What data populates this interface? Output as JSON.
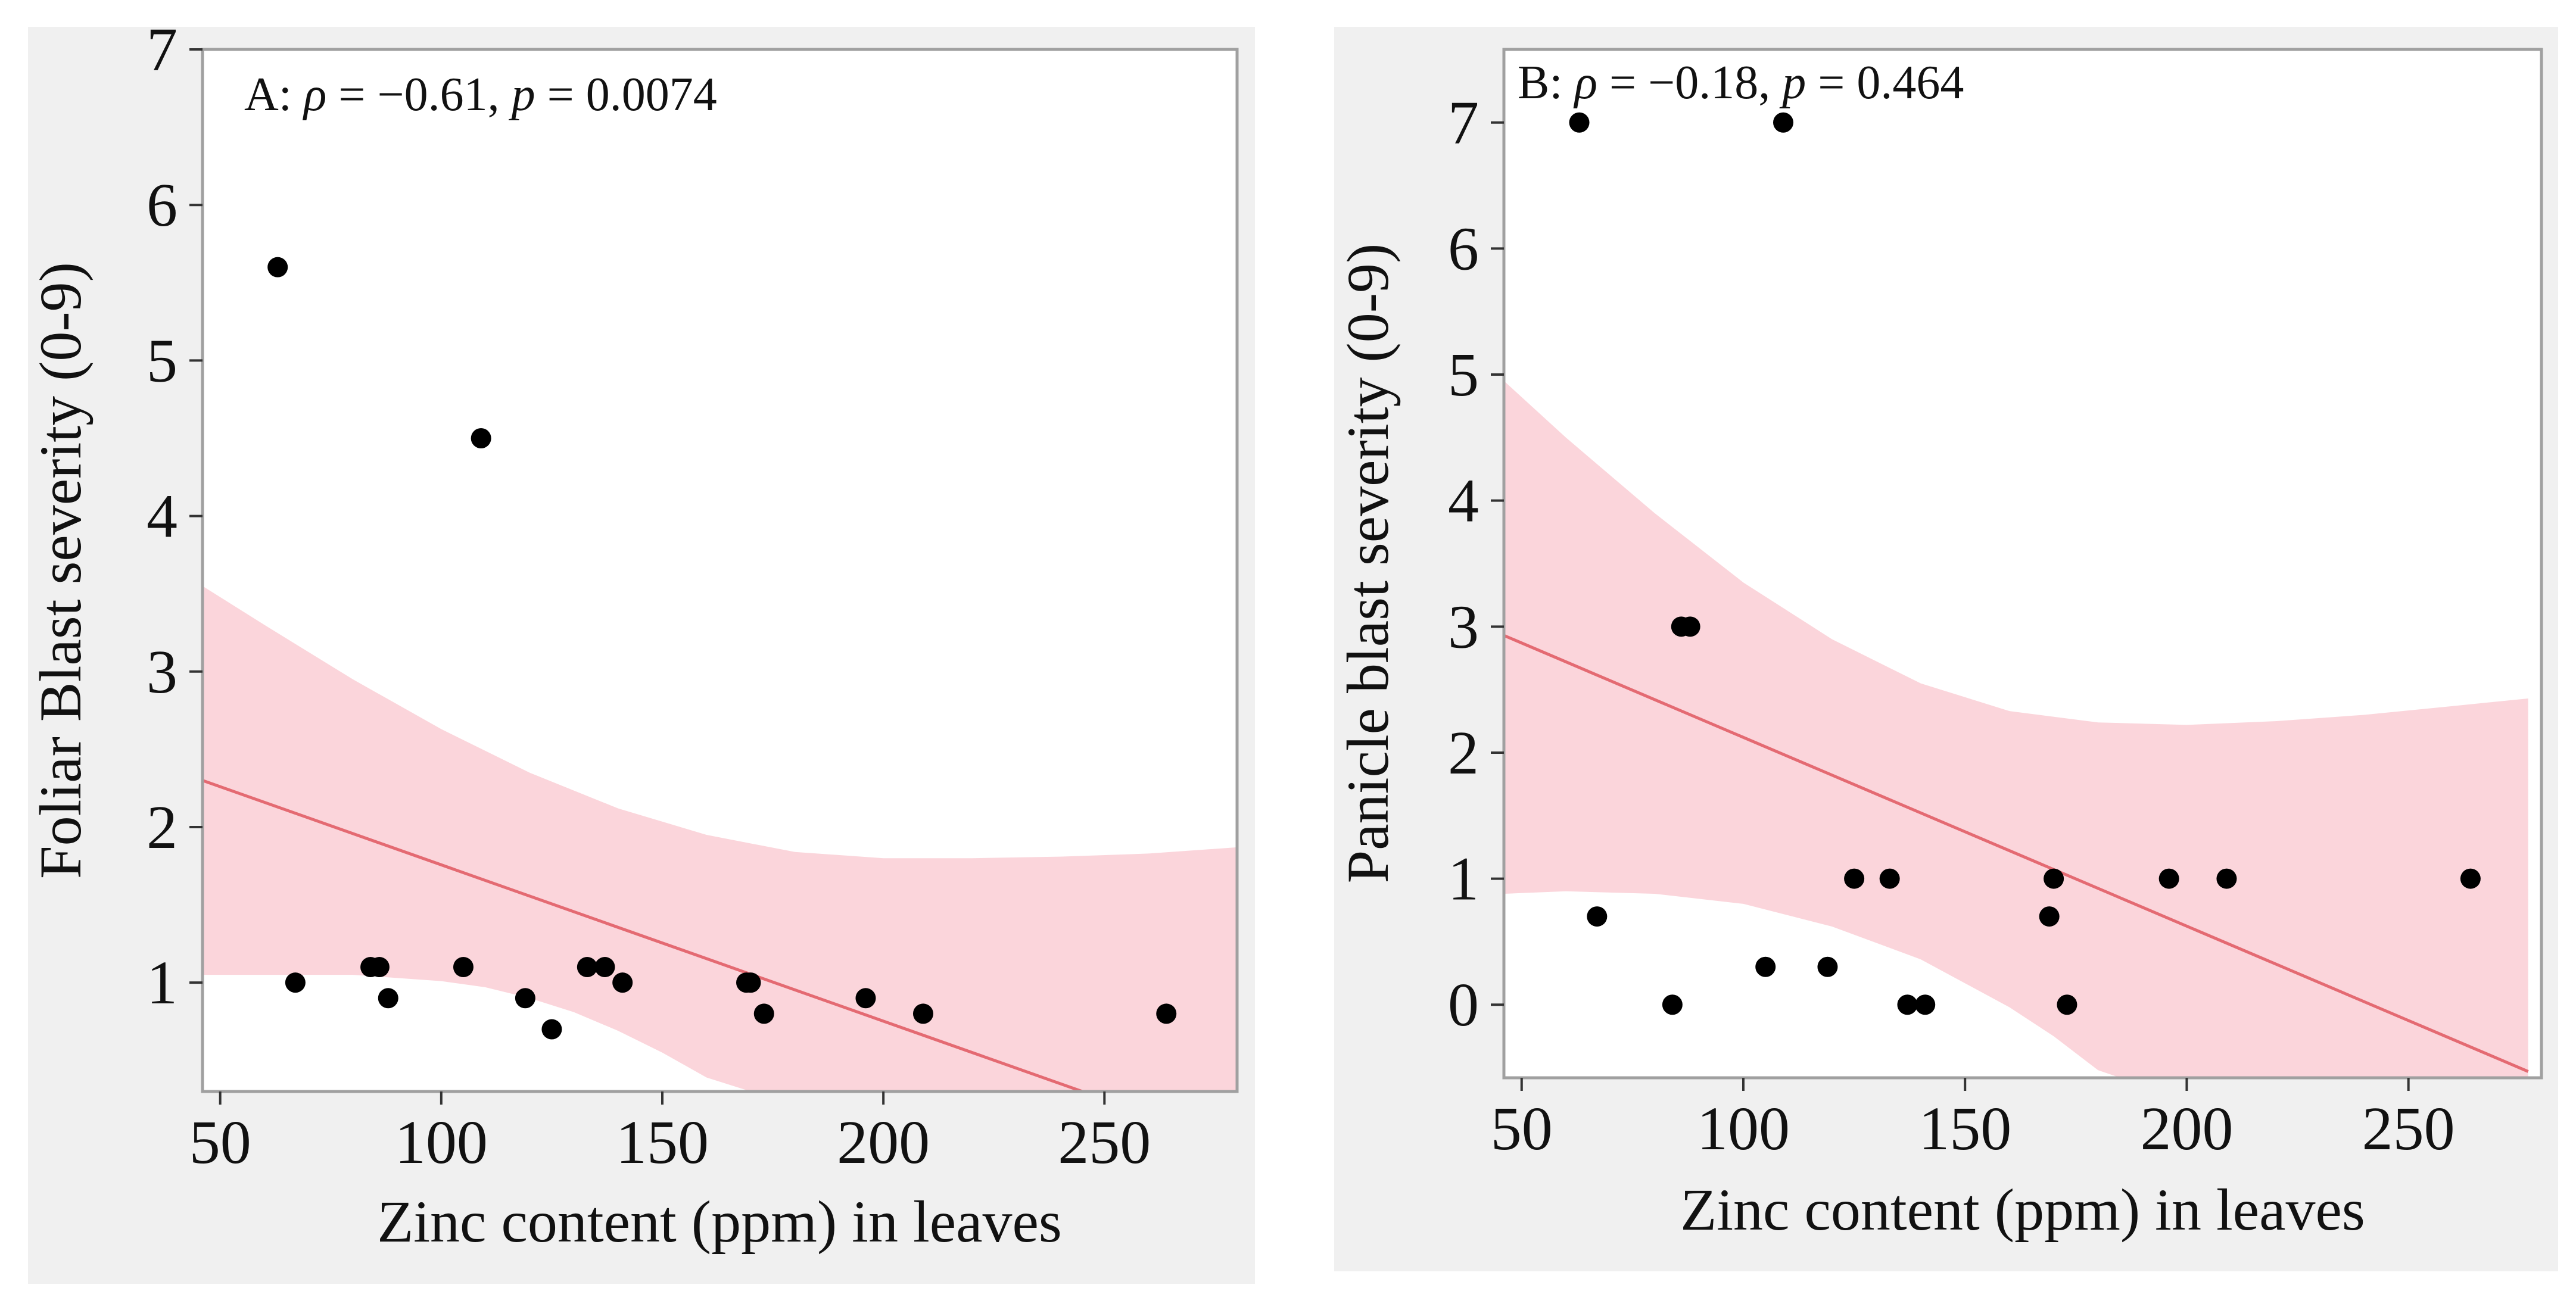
{
  "colors": {
    "panel_bg": "#f0f0f0",
    "plot_bg": "#ffffff",
    "frame": "#a0a0a0",
    "band": "#fbd5db",
    "fit_line": "#e46a72",
    "point": "#000000"
  },
  "chart_data": [
    {
      "type": "scatter",
      "panel": "A",
      "annotation": {
        "prefix": "A: ",
        "rho_symbol": "ρ",
        "rho_text": " = −0.61, ",
        "p_symbol": "p",
        "p_text": " = 0.0074"
      },
      "xlabel": "Zinc content (ppm) in leaves",
      "ylabel": "Foliar Blast severity (0-9)",
      "xlim": [
        46,
        280
      ],
      "ylim": [
        0.3,
        7
      ],
      "xticks": [
        50,
        100,
        150,
        200,
        250
      ],
      "yticks": [
        1,
        2,
        3,
        4,
        5,
        6,
        7
      ],
      "x": [
        63,
        67,
        84,
        86,
        88,
        105,
        119,
        125,
        133,
        137,
        141,
        169,
        170,
        173,
        196,
        209,
        264,
        109
      ],
      "y": [
        5.6,
        1.0,
        1.1,
        1.1,
        0.9,
        1.1,
        0.9,
        0.7,
        1.1,
        1.1,
        1.0,
        1.0,
        1.0,
        0.8,
        0.9,
        0.8,
        0.8,
        4.5
      ],
      "fit": {
        "x": [
          46,
          245
        ],
        "y": [
          2.3,
          0.3
        ]
      },
      "band_upper": {
        "x": [
          46,
          60,
          80,
          100,
          120,
          140,
          160,
          180,
          200,
          220,
          240,
          260,
          280
        ],
        "y": [
          3.55,
          3.3,
          2.95,
          2.63,
          2.35,
          2.12,
          1.95,
          1.84,
          1.8,
          1.8,
          1.81,
          1.83,
          1.87
        ]
      },
      "band_lower": {
        "x": [
          46,
          60,
          80,
          100,
          110,
          120,
          130,
          140,
          150,
          160,
          170,
          280
        ],
        "y": [
          1.05,
          1.05,
          1.05,
          1.01,
          0.97,
          0.9,
          0.81,
          0.69,
          0.55,
          0.39,
          0.3,
          0.3
        ]
      }
    },
    {
      "type": "scatter",
      "panel": "B",
      "annotation": {
        "prefix": "B: ",
        "rho_symbol": "ρ",
        "rho_text": " = −0.18, ",
        "p_symbol": "p",
        "p_text": " = 0.464"
      },
      "xlabel": "Zinc content (ppm) in leaves",
      "ylabel": "Panicle blast severity (0-9)",
      "xlim": [
        46,
        280
      ],
      "ylim": [
        -0.58,
        7.58
      ],
      "xticks": [
        50,
        100,
        150,
        200,
        250
      ],
      "yticks": [
        0,
        1,
        2,
        3,
        4,
        5,
        6,
        7
      ],
      "x": [
        63,
        109,
        67,
        84,
        86,
        88,
        105,
        119,
        125,
        133,
        137,
        141,
        169,
        170,
        173,
        196,
        209,
        264
      ],
      "y": [
        7,
        7,
        0.7,
        0,
        3,
        3,
        0.3,
        0.3,
        1,
        1,
        0,
        0,
        0.7,
        1,
        0,
        1,
        1,
        1
      ],
      "fit": {
        "x": [
          46,
          277
        ],
        "y": [
          2.93,
          -0.53
        ]
      },
      "band_upper": {
        "x": [
          46,
          60,
          80,
          100,
          120,
          140,
          160,
          180,
          200,
          220,
          240,
          260,
          277
        ],
        "y": [
          4.95,
          4.5,
          3.9,
          3.35,
          2.9,
          2.55,
          2.33,
          2.24,
          2.22,
          2.25,
          2.3,
          2.37,
          2.43
        ]
      },
      "band_lower": {
        "x": [
          46,
          60,
          80,
          100,
          120,
          140,
          160,
          170,
          180,
          185,
          277
        ],
        "y": [
          0.88,
          0.9,
          0.88,
          0.8,
          0.62,
          0.36,
          -0.02,
          -0.25,
          -0.52,
          -0.58,
          -0.58
        ]
      }
    }
  ]
}
